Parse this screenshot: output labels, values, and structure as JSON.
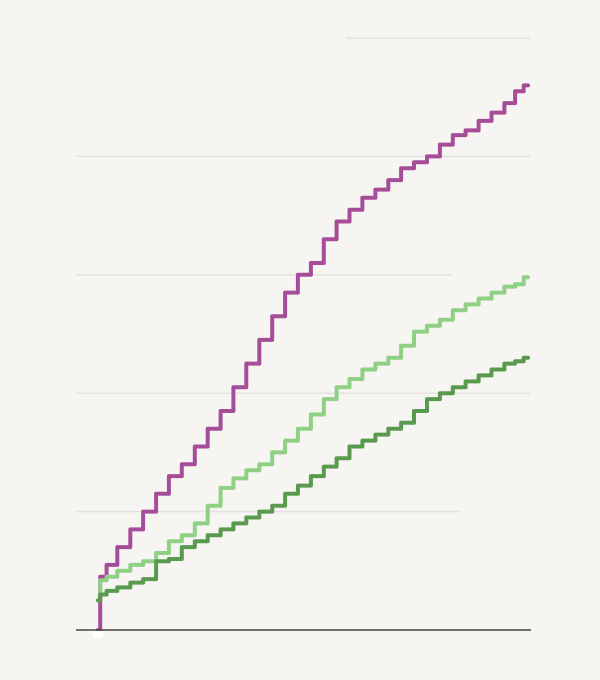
{
  "chart_data": {
    "type": "line",
    "title": "",
    "xlabel": "",
    "ylabel": "",
    "xlim": [
      0,
      100
    ],
    "ylim": [
      0,
      5
    ],
    "grid": true,
    "legend": "none",
    "x": [
      0,
      1,
      3,
      6,
      9,
      12,
      15,
      18,
      21,
      24,
      27,
      30,
      33,
      36,
      39,
      42,
      45,
      48,
      51,
      54,
      57,
      60,
      63,
      66,
      69,
      72,
      75,
      78,
      81,
      84,
      87,
      90,
      93,
      96,
      98,
      100
    ],
    "series": [
      {
        "color": "#a64d9a",
        "values": [
          0,
          0.45,
          0.55,
          0.7,
          0.85,
          1.0,
          1.15,
          1.3,
          1.4,
          1.55,
          1.7,
          1.85,
          2.05,
          2.25,
          2.45,
          2.65,
          2.85,
          3.0,
          3.1,
          3.3,
          3.45,
          3.55,
          3.65,
          3.72,
          3.8,
          3.9,
          3.95,
          4.0,
          4.1,
          4.18,
          4.22,
          4.3,
          4.37,
          4.45,
          4.55,
          4.6
        ]
      },
      {
        "color": "#8fd084",
        "values": [
          0.25,
          0.42,
          0.45,
          0.5,
          0.55,
          0.58,
          0.65,
          0.75,
          0.8,
          0.9,
          1.05,
          1.2,
          1.28,
          1.35,
          1.4,
          1.5,
          1.6,
          1.7,
          1.82,
          1.95,
          2.05,
          2.12,
          2.2,
          2.25,
          2.3,
          2.4,
          2.52,
          2.57,
          2.62,
          2.7,
          2.75,
          2.8,
          2.85,
          2.9,
          2.92,
          2.98
        ]
      },
      {
        "color": "#5a9a4f",
        "values": [
          0.25,
          0.3,
          0.33,
          0.36,
          0.4,
          0.43,
          0.58,
          0.6,
          0.7,
          0.75,
          0.8,
          0.85,
          0.9,
          0.95,
          1.0,
          1.05,
          1.15,
          1.22,
          1.3,
          1.38,
          1.45,
          1.55,
          1.6,
          1.65,
          1.7,
          1.75,
          1.85,
          1.95,
          2.0,
          2.05,
          2.1,
          2.15,
          2.2,
          2.25,
          2.27,
          2.3
        ]
      }
    ]
  }
}
